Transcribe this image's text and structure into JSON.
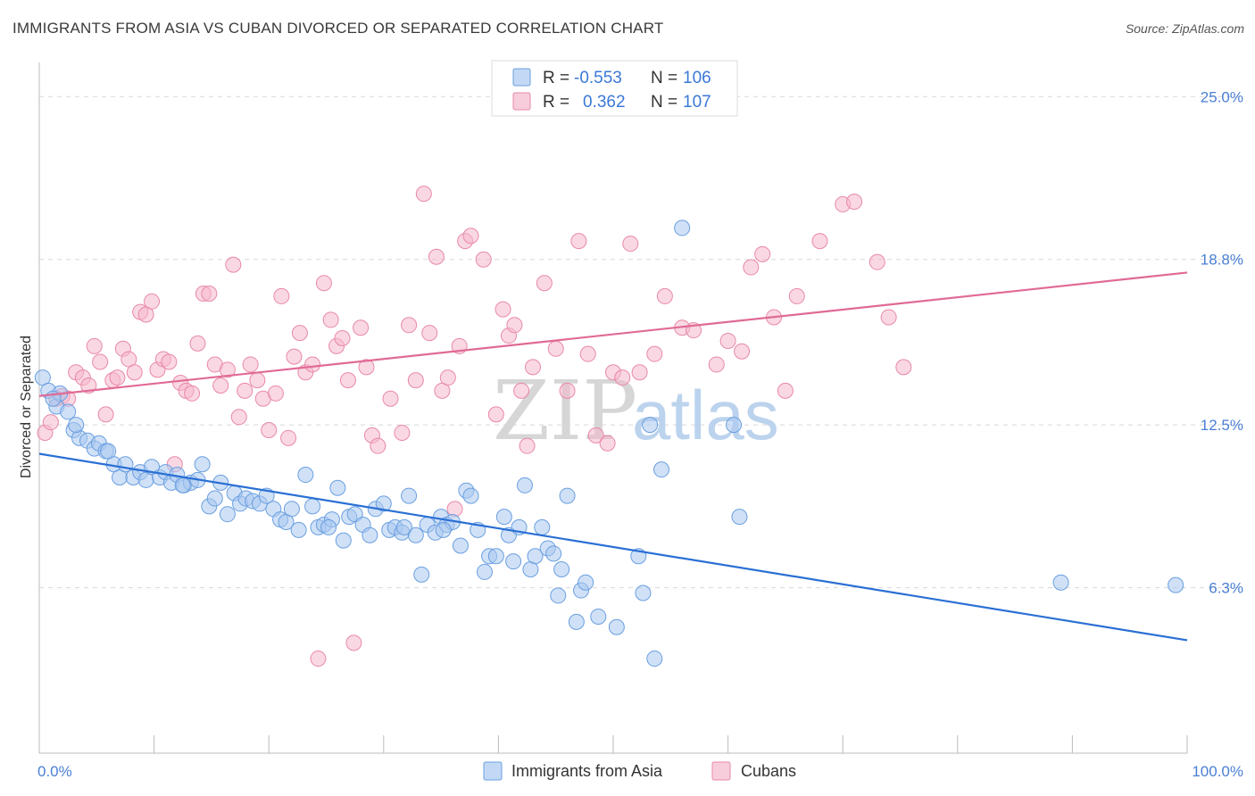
{
  "header": {
    "title": "IMMIGRANTS FROM ASIA VS CUBAN DIVORCED OR SEPARATED CORRELATION CHART",
    "source": "Source: ZipAtlas.com"
  },
  "watermark": {
    "zip": "ZIP",
    "atlas": "atlas"
  },
  "legend": {
    "r_label": "R =",
    "n_label": "N =",
    "rows": [
      {
        "r": "-0.553",
        "n": "106"
      },
      {
        "r": "0.362",
        "n": "107"
      }
    ]
  },
  "colors": {
    "asia_fill": "#a9c8f0",
    "asia_stroke": "#6a9fe0",
    "asia_line": "#2a6fd4",
    "cuban_fill": "#f5b8cc",
    "cuban_stroke": "#e889a8",
    "cuban_line": "#e06a96",
    "grid": "#d8d8d8",
    "tick_label": "#4a7fd4"
  },
  "chart_data": {
    "type": "scatter",
    "title": "IMMIGRANTS FROM ASIA VS CUBAN DIVORCED OR SEPARATED CORRELATION CHART",
    "xlabel": "",
    "ylabel": "Divorced or Separated",
    "xlim": [
      0,
      100
    ],
    "ylim": [
      0,
      26.3
    ],
    "x_tick_labels": [
      "0.0%",
      "100.0%"
    ],
    "y_ticks": [
      6.3,
      12.5,
      18.8,
      25.0
    ],
    "y_tick_labels": [
      "6.3%",
      "12.5%",
      "18.8%",
      "25.0%"
    ],
    "grid": true,
    "legend_position": "bottom-center",
    "series": [
      {
        "name": "Immigrants from Asia",
        "trend": {
          "x": [
            0,
            100
          ],
          "y": [
            11.4,
            4.3
          ]
        },
        "points": [
          [
            0.3,
            14.3
          ],
          [
            0.8,
            13.8
          ],
          [
            1.5,
            13.2
          ],
          [
            1.8,
            13.7
          ],
          [
            2.5,
            13.0
          ],
          [
            3.0,
            12.3
          ],
          [
            3.5,
            12.0
          ],
          [
            4.2,
            11.9
          ],
          [
            4.8,
            11.6
          ],
          [
            5.2,
            11.8
          ],
          [
            5.8,
            11.5
          ],
          [
            6.5,
            11.0
          ],
          [
            7.0,
            10.5
          ],
          [
            7.5,
            11.0
          ],
          [
            8.2,
            10.5
          ],
          [
            8.8,
            10.7
          ],
          [
            9.3,
            10.4
          ],
          [
            9.8,
            10.9
          ],
          [
            10.5,
            10.5
          ],
          [
            11.0,
            10.7
          ],
          [
            11.5,
            10.3
          ],
          [
            12.0,
            10.6
          ],
          [
            12.6,
            10.2
          ],
          [
            13.2,
            10.3
          ],
          [
            13.8,
            10.4
          ],
          [
            14.2,
            11.0
          ],
          [
            14.8,
            9.4
          ],
          [
            15.3,
            9.7
          ],
          [
            15.8,
            10.3
          ],
          [
            16.4,
            9.1
          ],
          [
            17.0,
            9.9
          ],
          [
            17.5,
            9.5
          ],
          [
            18.0,
            9.7
          ],
          [
            18.6,
            9.6
          ],
          [
            19.2,
            9.5
          ],
          [
            19.8,
            9.8
          ],
          [
            20.4,
            9.3
          ],
          [
            21.0,
            8.9
          ],
          [
            21.5,
            8.8
          ],
          [
            22.0,
            9.3
          ],
          [
            22.6,
            8.5
          ],
          [
            23.2,
            10.6
          ],
          [
            23.8,
            9.4
          ],
          [
            24.3,
            8.6
          ],
          [
            24.8,
            8.7
          ],
          [
            25.5,
            8.9
          ],
          [
            26.0,
            10.1
          ],
          [
            26.5,
            8.1
          ],
          [
            27.0,
            9.0
          ],
          [
            27.5,
            9.1
          ],
          [
            28.2,
            8.7
          ],
          [
            28.8,
            8.3
          ],
          [
            29.3,
            9.3
          ],
          [
            30.0,
            9.5
          ],
          [
            30.5,
            8.5
          ],
          [
            31.0,
            8.6
          ],
          [
            31.6,
            8.4
          ],
          [
            32.2,
            9.8
          ],
          [
            32.8,
            8.3
          ],
          [
            33.3,
            6.8
          ],
          [
            33.8,
            8.7
          ],
          [
            34.5,
            8.4
          ],
          [
            35.0,
            9.0
          ],
          [
            35.5,
            8.7
          ],
          [
            36.0,
            8.8
          ],
          [
            36.7,
            7.9
          ],
          [
            37.2,
            10.0
          ],
          [
            37.6,
            9.8
          ],
          [
            38.2,
            8.5
          ],
          [
            38.8,
            6.9
          ],
          [
            39.2,
            7.5
          ],
          [
            39.8,
            7.5
          ],
          [
            40.5,
            9.0
          ],
          [
            40.9,
            8.3
          ],
          [
            41.3,
            7.3
          ],
          [
            42.3,
            10.2
          ],
          [
            42.8,
            7.0
          ],
          [
            43.2,
            7.5
          ],
          [
            43.8,
            8.6
          ],
          [
            44.3,
            7.8
          ],
          [
            44.8,
            7.6
          ],
          [
            45.2,
            6.0
          ],
          [
            45.5,
            7.0
          ],
          [
            46.0,
            9.8
          ],
          [
            46.8,
            5.0
          ],
          [
            47.2,
            6.2
          ],
          [
            47.6,
            6.5
          ],
          [
            48.7,
            5.2
          ],
          [
            50.3,
            4.8
          ],
          [
            52.2,
            7.5
          ],
          [
            52.6,
            6.1
          ],
          [
            53.2,
            12.5
          ],
          [
            53.6,
            3.6
          ],
          [
            54.2,
            10.8
          ],
          [
            56.0,
            20.0
          ],
          [
            60.5,
            12.5
          ],
          [
            61.0,
            9.0
          ],
          [
            89.0,
            6.5
          ],
          [
            99.0,
            6.4
          ],
          [
            1.2,
            13.5
          ],
          [
            3.2,
            12.5
          ],
          [
            6.0,
            11.5
          ],
          [
            12.5,
            10.2
          ],
          [
            25.2,
            8.6
          ],
          [
            31.8,
            8.6
          ],
          [
            35.2,
            8.5
          ],
          [
            41.8,
            8.6
          ]
        ]
      },
      {
        "name": "Cubans",
        "trend": {
          "x": [
            0,
            100
          ],
          "y": [
            13.6,
            18.3
          ]
        },
        "points": [
          [
            0.5,
            12.2
          ],
          [
            1.0,
            12.6
          ],
          [
            1.5,
            13.5
          ],
          [
            2.0,
            13.6
          ],
          [
            2.5,
            13.5
          ],
          [
            3.2,
            14.5
          ],
          [
            3.8,
            14.3
          ],
          [
            4.3,
            14.0
          ],
          [
            4.8,
            15.5
          ],
          [
            5.3,
            14.9
          ],
          [
            5.8,
            12.9
          ],
          [
            6.4,
            14.2
          ],
          [
            6.8,
            14.3
          ],
          [
            7.3,
            15.4
          ],
          [
            7.8,
            15.0
          ],
          [
            8.3,
            14.5
          ],
          [
            8.8,
            16.8
          ],
          [
            9.3,
            16.7
          ],
          [
            9.8,
            17.2
          ],
          [
            10.3,
            14.6
          ],
          [
            10.8,
            15.0
          ],
          [
            11.3,
            14.9
          ],
          [
            11.8,
            11.0
          ],
          [
            12.3,
            14.1
          ],
          [
            12.8,
            13.8
          ],
          [
            13.3,
            13.7
          ],
          [
            13.8,
            15.6
          ],
          [
            14.3,
            17.5
          ],
          [
            14.8,
            17.5
          ],
          [
            15.3,
            14.8
          ],
          [
            15.8,
            14.0
          ],
          [
            16.4,
            14.6
          ],
          [
            16.9,
            18.6
          ],
          [
            17.4,
            12.8
          ],
          [
            17.9,
            13.8
          ],
          [
            18.4,
            14.8
          ],
          [
            19.0,
            14.2
          ],
          [
            19.5,
            13.5
          ],
          [
            20.0,
            12.3
          ],
          [
            20.6,
            13.7
          ],
          [
            21.1,
            17.4
          ],
          [
            21.7,
            12.0
          ],
          [
            22.2,
            15.1
          ],
          [
            22.7,
            16.0
          ],
          [
            23.2,
            14.5
          ],
          [
            23.8,
            14.8
          ],
          [
            24.3,
            3.6
          ],
          [
            24.8,
            17.9
          ],
          [
            25.4,
            16.5
          ],
          [
            25.9,
            15.5
          ],
          [
            26.4,
            15.8
          ],
          [
            26.9,
            14.2
          ],
          [
            27.4,
            4.2
          ],
          [
            28.0,
            16.2
          ],
          [
            28.5,
            14.7
          ],
          [
            29.0,
            12.1
          ],
          [
            29.5,
            11.7
          ],
          [
            30.6,
            13.5
          ],
          [
            31.6,
            12.2
          ],
          [
            32.2,
            16.3
          ],
          [
            32.8,
            14.2
          ],
          [
            33.5,
            21.3
          ],
          [
            34.0,
            16.0
          ],
          [
            34.6,
            18.9
          ],
          [
            35.1,
            13.8
          ],
          [
            35.6,
            14.3
          ],
          [
            36.2,
            9.3
          ],
          [
            36.6,
            15.5
          ],
          [
            37.1,
            19.5
          ],
          [
            37.6,
            19.7
          ],
          [
            38.7,
            18.8
          ],
          [
            39.8,
            12.9
          ],
          [
            40.4,
            16.9
          ],
          [
            40.9,
            15.9
          ],
          [
            41.4,
            16.3
          ],
          [
            42.0,
            13.8
          ],
          [
            42.5,
            11.7
          ],
          [
            43.0,
            14.7
          ],
          [
            44.0,
            17.9
          ],
          [
            45.0,
            15.4
          ],
          [
            46.0,
            13.8
          ],
          [
            47.0,
            19.5
          ],
          [
            47.8,
            15.2
          ],
          [
            48.5,
            12.1
          ],
          [
            49.5,
            11.8
          ],
          [
            50.0,
            14.5
          ],
          [
            50.8,
            14.3
          ],
          [
            51.5,
            19.4
          ],
          [
            52.3,
            14.5
          ],
          [
            53.6,
            15.2
          ],
          [
            54.5,
            17.4
          ],
          [
            56.0,
            16.2
          ],
          [
            57.0,
            16.1
          ],
          [
            59.0,
            14.8
          ],
          [
            60.0,
            15.7
          ],
          [
            61.2,
            15.3
          ],
          [
            62.0,
            18.5
          ],
          [
            63.0,
            19.0
          ],
          [
            64.0,
            16.6
          ],
          [
            65.0,
            13.8
          ],
          [
            66.0,
            17.4
          ],
          [
            68.0,
            19.5
          ],
          [
            70.0,
            20.9
          ],
          [
            71.0,
            21.0
          ],
          [
            73.0,
            18.7
          ],
          [
            74.0,
            16.6
          ],
          [
            75.3,
            14.7
          ]
        ]
      }
    ]
  },
  "bottom_legend": [
    {
      "label": "Immigrants from Asia"
    },
    {
      "label": "Cubans"
    }
  ]
}
